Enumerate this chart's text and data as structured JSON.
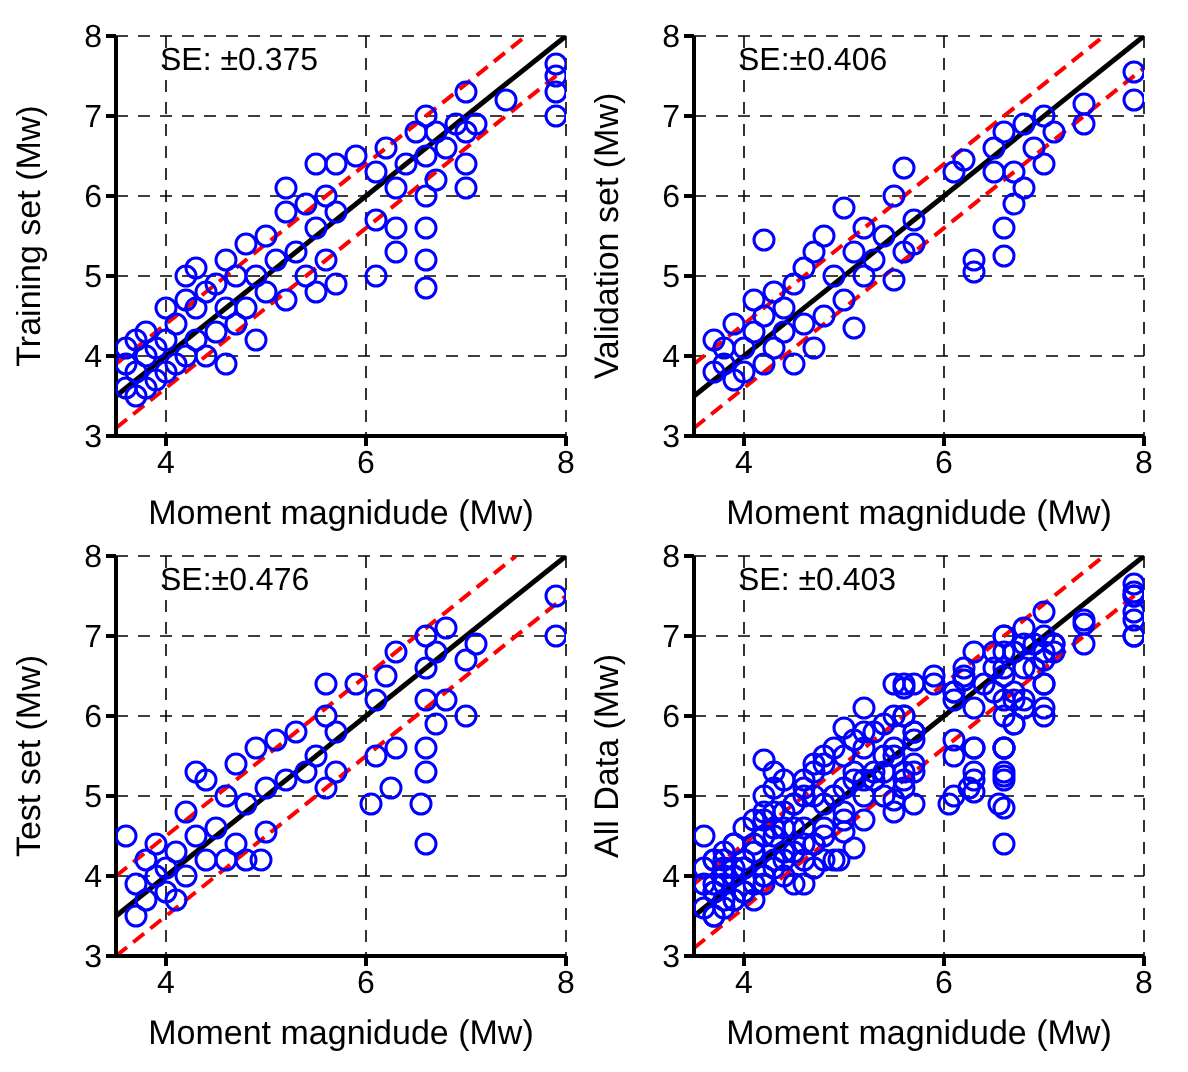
{
  "chart_data": [
    {
      "type": "scatter",
      "ylabel": "Training set (Mw)",
      "xlabel": "Moment magnidude (Mw)",
      "xlim": [
        3.5,
        8
      ],
      "ylim": [
        3,
        8
      ],
      "xticks": [
        4,
        6,
        8
      ],
      "yticks": [
        3,
        4,
        5,
        6,
        7,
        8
      ],
      "grid": true,
      "annotations": [
        "SE: ±0.375"
      ],
      "series": [
        {
          "type": "scatter",
          "marker": "circle",
          "color": "#0000ff",
          "x": [
            3.6,
            3.6,
            3.6,
            3.7,
            3.7,
            3.7,
            3.8,
            3.8,
            3.8,
            3.9,
            3.9,
            4.0,
            4.0,
            4.0,
            4.1,
            4.1,
            4.2,
            4.2,
            4.2,
            4.3,
            4.3,
            4.3,
            4.4,
            4.4,
            4.5,
            4.5,
            4.6,
            4.6,
            4.6,
            4.7,
            4.7,
            4.8,
            4.8,
            4.9,
            4.9,
            5.0,
            5.0,
            5.1,
            5.2,
            5.2,
            5.2,
            5.3,
            5.4,
            5.4,
            5.5,
            5.5,
            5.5,
            5.6,
            5.6,
            5.7,
            5.7,
            5.7,
            5.9,
            6.1,
            6.1,
            6.1,
            6.2,
            6.3,
            6.3,
            6.3,
            6.4,
            6.5,
            6.6,
            6.6,
            6.6,
            6.6,
            6.6,
            6.6,
            6.7,
            6.7,
            6.8,
            6.9,
            7.0,
            7.0,
            7.0,
            7.0,
            7.1,
            7.4,
            7.9,
            7.9,
            7.9,
            7.9
          ],
          "values": [
            3.6,
            3.9,
            4.1,
            3.5,
            3.8,
            4.2,
            3.6,
            4.0,
            4.3,
            3.7,
            4.1,
            3.8,
            4.2,
            4.6,
            3.9,
            4.4,
            4.0,
            4.7,
            5.0,
            4.2,
            4.6,
            5.1,
            4.0,
            4.8,
            4.3,
            4.9,
            3.9,
            4.6,
            5.2,
            4.4,
            5.0,
            4.6,
            5.4,
            4.2,
            5.0,
            4.8,
            5.5,
            5.2,
            4.7,
            5.8,
            6.1,
            5.3,
            5.0,
            5.9,
            4.8,
            5.6,
            6.4,
            5.2,
            6.0,
            4.9,
            5.8,
            6.4,
            6.5,
            5.0,
            5.7,
            6.3,
            6.6,
            5.3,
            5.6,
            6.1,
            6.4,
            6.8,
            4.85,
            5.2,
            5.6,
            6.0,
            6.5,
            7.0,
            6.2,
            6.8,
            6.6,
            6.9,
            6.1,
            6.4,
            6.8,
            7.3,
            6.9,
            7.2,
            7.0,
            7.3,
            7.5,
            7.65
          ]
        },
        {
          "type": "line",
          "marker": "none",
          "line_style": "solid",
          "color": "#000000",
          "x": [
            3.5,
            8
          ],
          "values": [
            3.5,
            8
          ]
        },
        {
          "type": "line",
          "marker": "none",
          "line_style": "dashed",
          "color": "#ff0000",
          "x": [
            3.5,
            7.6
          ],
          "values": [
            3.9,
            8
          ]
        },
        {
          "type": "line",
          "marker": "none",
          "line_style": "dashed",
          "color": "#ff0000",
          "x": [
            3.5,
            8
          ],
          "values": [
            3.1,
            7.6
          ]
        }
      ]
    },
    {
      "type": "scatter",
      "ylabel": "Validation set (Mw)",
      "xlabel": "Moment magnidude (Mw)",
      "xlim": [
        3.5,
        8
      ],
      "ylim": [
        3,
        8
      ],
      "xticks": [
        4,
        6,
        8
      ],
      "yticks": [
        3,
        4,
        5,
        6,
        7,
        8
      ],
      "grid": true,
      "annotations": [
        "SE:±0.406"
      ],
      "series": [
        {
          "type": "scatter",
          "marker": "circle",
          "color": "#0000ff",
          "x": [
            3.7,
            3.7,
            3.8,
            3.8,
            3.9,
            3.9,
            4.0,
            4.0,
            4.1,
            4.1,
            4.2,
            4.2,
            4.2,
            4.3,
            4.3,
            4.4,
            4.4,
            4.5,
            4.5,
            4.6,
            4.6,
            4.7,
            4.7,
            4.8,
            4.8,
            4.9,
            5.0,
            5.0,
            5.1,
            5.1,
            5.2,
            5.2,
            5.3,
            5.4,
            5.5,
            5.5,
            5.6,
            5.6,
            5.7,
            5.7,
            6.1,
            6.2,
            6.3,
            6.3,
            6.5,
            6.5,
            6.6,
            6.6,
            6.6,
            6.7,
            6.7,
            6.8,
            6.8,
            6.9,
            7.0,
            7.0,
            7.1,
            7.4,
            7.4,
            7.9,
            7.9
          ],
          "values": [
            3.8,
            4.2,
            3.9,
            4.1,
            3.7,
            4.4,
            3.8,
            4.1,
            4.7,
            4.3,
            3.9,
            4.5,
            5.45,
            4.1,
            4.8,
            4.3,
            4.6,
            3.9,
            4.9,
            4.4,
            5.1,
            4.1,
            5.3,
            4.5,
            5.5,
            5.0,
            4.7,
            5.85,
            4.35,
            5.3,
            5.6,
            5.0,
            5.2,
            5.5,
            4.95,
            6.0,
            5.3,
            6.35,
            5.7,
            5.4,
            6.3,
            6.45,
            5.05,
            5.2,
            6.6,
            6.3,
            5.25,
            5.6,
            6.8,
            5.9,
            6.3,
            6.1,
            6.9,
            6.6,
            6.4,
            7.0,
            6.8,
            6.9,
            7.15,
            7.2,
            7.55
          ]
        },
        {
          "type": "line",
          "marker": "none",
          "line_style": "solid",
          "color": "#000000",
          "x": [
            3.5,
            8
          ],
          "values": [
            3.5,
            8
          ]
        },
        {
          "type": "line",
          "marker": "none",
          "line_style": "dashed",
          "color": "#ff0000",
          "x": [
            3.5,
            7.6
          ],
          "values": [
            3.9,
            8
          ]
        },
        {
          "type": "line",
          "marker": "none",
          "line_style": "dashed",
          "color": "#ff0000",
          "x": [
            3.5,
            8
          ],
          "values": [
            3.1,
            7.6
          ]
        }
      ]
    },
    {
      "type": "scatter",
      "ylabel": "Test set (Mw)",
      "xlabel": "Moment magnidude (Mw)",
      "xlim": [
        3.5,
        8
      ],
      "ylim": [
        3,
        8
      ],
      "xticks": [
        4,
        6,
        8
      ],
      "yticks": [
        3,
        4,
        5,
        6,
        7,
        8
      ],
      "grid": true,
      "annotations": [
        "SE:±0.476"
      ],
      "series": [
        {
          "type": "scatter",
          "marker": "circle",
          "color": "#0000ff",
          "x": [
            3.6,
            3.7,
            3.7,
            3.8,
            3.8,
            3.9,
            3.9,
            4.0,
            4.0,
            4.1,
            4.1,
            4.2,
            4.2,
            4.3,
            4.3,
            4.4,
            4.4,
            4.5,
            4.6,
            4.6,
            4.7,
            4.7,
            4.8,
            4.8,
            4.9,
            4.95,
            5.0,
            5.0,
            5.1,
            5.2,
            5.3,
            5.4,
            5.5,
            5.6,
            5.6,
            5.6,
            5.7,
            5.7,
            5.9,
            6.05,
            6.1,
            6.1,
            6.2,
            6.25,
            6.3,
            6.3,
            6.55,
            6.6,
            6.6,
            6.6,
            6.6,
            6.6,
            6.6,
            6.7,
            6.7,
            6.8,
            6.8,
            7.0,
            7.0,
            7.1,
            7.9,
            7.9
          ],
          "values": [
            4.5,
            3.5,
            3.9,
            4.2,
            3.7,
            4.0,
            4.4,
            3.8,
            4.1,
            3.7,
            4.3,
            4.8,
            4.0,
            5.3,
            4.5,
            5.2,
            4.2,
            4.6,
            4.2,
            5.0,
            5.4,
            4.4,
            4.9,
            4.2,
            5.6,
            4.2,
            4.55,
            5.1,
            5.7,
            5.2,
            5.8,
            5.3,
            5.5,
            5.1,
            6.0,
            6.4,
            5.3,
            5.8,
            6.4,
            4.9,
            5.5,
            6.2,
            6.5,
            5.1,
            5.6,
            6.8,
            4.9,
            4.4,
            5.3,
            5.6,
            6.2,
            6.6,
            7.0,
            5.9,
            6.8,
            6.2,
            7.1,
            6.0,
            6.7,
            6.9,
            7.0,
            7.5
          ]
        },
        {
          "type": "line",
          "marker": "none",
          "line_style": "solid",
          "color": "#000000",
          "x": [
            3.5,
            8
          ],
          "values": [
            3.5,
            8
          ]
        },
        {
          "type": "line",
          "marker": "none",
          "line_style": "dashed",
          "color": "#ff0000",
          "x": [
            3.5,
            7.5
          ],
          "values": [
            4.0,
            8
          ]
        },
        {
          "type": "line",
          "marker": "none",
          "line_style": "dashed",
          "color": "#ff0000",
          "x": [
            3.5,
            8
          ],
          "values": [
            3.0,
            7.5
          ]
        }
      ]
    },
    {
      "type": "scatter",
      "ylabel": "All Data (Mw)",
      "xlabel": "Moment magnidude (Mw)",
      "xlim": [
        3.5,
        8
      ],
      "ylim": [
        3,
        8
      ],
      "xticks": [
        4,
        6,
        8
      ],
      "yticks": [
        3,
        4,
        5,
        6,
        7,
        8
      ],
      "grid": true,
      "annotations": [
        "SE: ±0.403"
      ],
      "series": [
        {
          "type": "scatter",
          "marker": "circle",
          "color": "#0000ff",
          "x": [
            3.6,
            3.6,
            3.6,
            3.7,
            3.7,
            3.7,
            3.8,
            3.8,
            3.8,
            3.9,
            3.9,
            4.0,
            4.0,
            4.0,
            4.1,
            4.1,
            4.2,
            4.2,
            4.2,
            4.3,
            4.3,
            4.3,
            4.4,
            4.4,
            4.5,
            4.5,
            4.6,
            4.6,
            4.6,
            4.7,
            4.7,
            4.8,
            4.8,
            4.9,
            4.9,
            5.0,
            5.0,
            5.1,
            5.2,
            5.2,
            5.2,
            5.3,
            5.4,
            5.4,
            5.5,
            5.5,
            5.5,
            5.6,
            5.6,
            5.7,
            5.7,
            5.7,
            5.9,
            6.1,
            6.1,
            6.1,
            6.2,
            6.3,
            6.3,
            6.3,
            6.4,
            6.5,
            6.6,
            6.6,
            6.6,
            6.6,
            6.6,
            6.6,
            6.7,
            6.7,
            6.8,
            6.9,
            7.0,
            7.0,
            7.0,
            7.0,
            7.1,
            7.4,
            7.9,
            7.9,
            7.9,
            7.9
          ],
          "values": [
            3.6,
            3.9,
            4.1,
            3.5,
            3.8,
            4.2,
            3.6,
            4.0,
            4.3,
            3.7,
            4.1,
            3.8,
            4.2,
            4.6,
            3.9,
            4.4,
            4.0,
            4.7,
            5.0,
            4.2,
            4.6,
            5.1,
            4.0,
            4.8,
            4.3,
            4.9,
            3.9,
            4.6,
            5.2,
            4.4,
            5.0,
            4.6,
            5.4,
            4.2,
            5.0,
            4.8,
            5.5,
            5.2,
            4.7,
            5.8,
            6.1,
            5.3,
            5.0,
            5.9,
            4.8,
            5.6,
            6.4,
            5.2,
            6.0,
            4.9,
            5.8,
            6.4,
            6.5,
            5.0,
            5.7,
            6.3,
            6.6,
            5.3,
            5.6,
            6.1,
            6.4,
            6.8,
            4.85,
            5.2,
            5.6,
            6.0,
            6.5,
            7.0,
            6.2,
            6.8,
            6.6,
            6.9,
            6.1,
            6.4,
            6.8,
            7.3,
            6.9,
            7.2,
            7.0,
            7.3,
            7.5,
            7.65
          ]
        },
        {
          "type": "scatter",
          "marker": "circle",
          "color": "#0000ff",
          "x": [
            3.7,
            3.7,
            3.8,
            3.8,
            3.9,
            3.9,
            4.0,
            4.0,
            4.1,
            4.1,
            4.2,
            4.2,
            4.2,
            4.3,
            4.3,
            4.4,
            4.4,
            4.5,
            4.5,
            4.6,
            4.6,
            4.7,
            4.7,
            4.8,
            4.8,
            4.9,
            5.0,
            5.0,
            5.1,
            5.1,
            5.2,
            5.2,
            5.3,
            5.4,
            5.5,
            5.5,
            5.6,
            5.6,
            5.7,
            5.7,
            6.1,
            6.2,
            6.3,
            6.3,
            6.5,
            6.5,
            6.6,
            6.6,
            6.6,
            6.7,
            6.7,
            6.8,
            6.8,
            6.9,
            7.0,
            7.0,
            7.1,
            7.4,
            7.4,
            7.9,
            7.9
          ],
          "values": [
            3.8,
            4.2,
            3.9,
            4.1,
            3.7,
            4.4,
            3.8,
            4.1,
            4.7,
            4.3,
            3.9,
            4.5,
            5.45,
            4.1,
            4.8,
            4.3,
            4.6,
            3.9,
            4.9,
            4.4,
            5.1,
            4.1,
            5.3,
            4.5,
            5.5,
            5.0,
            4.7,
            5.85,
            4.35,
            5.3,
            5.6,
            5.0,
            5.2,
            5.5,
            4.95,
            6.0,
            5.3,
            6.35,
            5.7,
            5.4,
            6.3,
            6.45,
            5.05,
            5.2,
            6.6,
            6.3,
            5.25,
            5.6,
            6.8,
            5.9,
            6.3,
            6.1,
            6.9,
            6.6,
            6.4,
            7.0,
            6.8,
            6.9,
            7.15,
            7.2,
            7.55
          ]
        },
        {
          "type": "scatter",
          "marker": "circle",
          "color": "#0000ff",
          "x": [
            3.6,
            3.7,
            3.7,
            3.8,
            3.8,
            3.9,
            3.9,
            4.0,
            4.0,
            4.1,
            4.1,
            4.2,
            4.2,
            4.3,
            4.3,
            4.4,
            4.4,
            4.5,
            4.6,
            4.6,
            4.7,
            4.7,
            4.8,
            4.8,
            4.9,
            4.95,
            5.0,
            5.0,
            5.1,
            5.2,
            5.3,
            5.4,
            5.5,
            5.6,
            5.6,
            5.6,
            5.7,
            5.7,
            5.9,
            6.05,
            6.1,
            6.1,
            6.2,
            6.25,
            6.3,
            6.3,
            6.55,
            6.6,
            6.6,
            6.6,
            6.6,
            6.6,
            6.6,
            6.7,
            6.7,
            6.8,
            6.8,
            7.0,
            7.0,
            7.1,
            7.9,
            7.9
          ],
          "values": [
            4.5,
            3.5,
            3.9,
            4.2,
            3.7,
            4.0,
            4.4,
            3.8,
            4.1,
            3.7,
            4.3,
            4.8,
            4.0,
            5.3,
            4.5,
            5.2,
            4.2,
            4.6,
            4.2,
            5.0,
            5.4,
            4.4,
            4.9,
            4.2,
            5.6,
            4.2,
            4.55,
            5.1,
            5.7,
            5.2,
            5.8,
            5.3,
            5.5,
            5.1,
            6.0,
            6.4,
            5.3,
            5.8,
            6.4,
            4.9,
            5.5,
            6.2,
            6.5,
            5.1,
            5.6,
            6.8,
            4.9,
            4.4,
            5.3,
            5.6,
            6.2,
            6.6,
            7.0,
            5.9,
            6.8,
            6.2,
            7.1,
            6.0,
            6.7,
            6.9,
            7.0,
            7.5
          ]
        },
        {
          "type": "line",
          "marker": "none",
          "line_style": "solid",
          "color": "#000000",
          "x": [
            3.5,
            8
          ],
          "values": [
            3.5,
            8
          ]
        },
        {
          "type": "line",
          "marker": "none",
          "line_style": "dashed",
          "color": "#ff0000",
          "x": [
            3.5,
            7.6
          ],
          "values": [
            3.9,
            8
          ]
        },
        {
          "type": "line",
          "marker": "none",
          "line_style": "dashed",
          "color": "#ff0000",
          "x": [
            3.5,
            8
          ],
          "values": [
            3.1,
            7.6
          ]
        }
      ]
    }
  ]
}
